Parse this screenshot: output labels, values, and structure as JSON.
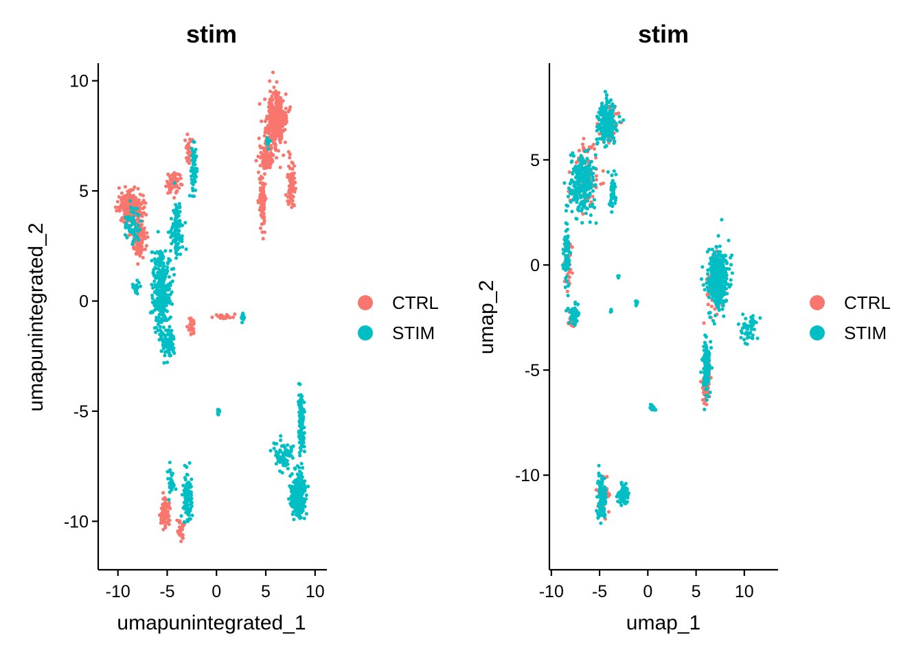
{
  "colors": {
    "CTRL": "#F8766D",
    "STIM": "#00BFC4"
  },
  "chart_data": [
    {
      "type": "scatter",
      "title": "stim",
      "xlabel": "umapunintegrated_1",
      "ylabel": "umapunintegrated_2",
      "xlim": [
        -12,
        11.2
      ],
      "ylim": [
        -12.2,
        10.8
      ],
      "xticks": [
        -10,
        -5,
        0,
        5,
        10
      ],
      "xtick_labels": [
        "-10",
        "-5",
        "0",
        "5",
        "10"
      ],
      "yticks": [
        -10,
        -5,
        0,
        5,
        10
      ],
      "ytick_labels": [
        "-10",
        "-5",
        "0",
        "5",
        "10"
      ],
      "grid": false,
      "legend": {
        "position": "right",
        "entries": [
          "CTRL",
          "STIM"
        ]
      },
      "series": [
        {
          "name": "CTRL",
          "clusters": [
            {
              "center": [
                6.0,
                8.2
              ],
              "spread": [
                1.0,
                1.2
              ],
              "n": 380
            },
            {
              "center": [
                5.0,
                6.5
              ],
              "spread": [
                0.8,
                0.7
              ],
              "n": 90
            },
            {
              "center": [
                4.7,
                4.6
              ],
              "spread": [
                0.35,
                1.5
              ],
              "n": 70
            },
            {
              "center": [
                7.6,
                5.2
              ],
              "spread": [
                0.5,
                1.2
              ],
              "n": 80
            },
            {
              "center": [
                -8.8,
                4.3
              ],
              "spread": [
                1.1,
                0.7
              ],
              "n": 240
            },
            {
              "center": [
                -7.9,
                3.0
              ],
              "spread": [
                0.7,
                1.1
              ],
              "n": 110
            },
            {
              "center": [
                -4.3,
                5.4
              ],
              "spread": [
                0.8,
                0.5
              ],
              "n": 60
            },
            {
              "center": [
                -2.8,
                7.0
              ],
              "spread": [
                0.4,
                0.6
              ],
              "n": 30
            },
            {
              "center": [
                -2.5,
                -1.2
              ],
              "spread": [
                0.35,
                0.4
              ],
              "n": 25
            },
            {
              "center": [
                1.0,
                -0.7
              ],
              "spread": [
                1.3,
                0.15
              ],
              "n": 18
            },
            {
              "center": [
                -5.2,
                -9.6
              ],
              "spread": [
                0.45,
                0.6
              ],
              "n": 100
            },
            {
              "center": [
                -3.6,
                -10.4
              ],
              "spread": [
                0.5,
                0.5
              ],
              "n": 30
            }
          ]
        },
        {
          "name": "STIM",
          "clusters": [
            {
              "center": [
                -5.6,
                0.5
              ],
              "spread": [
                0.9,
                1.8
              ],
              "n": 300
            },
            {
              "center": [
                -4.9,
                -1.9
              ],
              "spread": [
                0.6,
                0.7
              ],
              "n": 90
            },
            {
              "center": [
                -4.0,
                3.2
              ],
              "spread": [
                0.6,
                1.2
              ],
              "n": 110
            },
            {
              "center": [
                -2.3,
                6.0
              ],
              "spread": [
                0.3,
                1.0
              ],
              "n": 60
            },
            {
              "center": [
                -8.5,
                3.5
              ],
              "spread": [
                0.8,
                1.0
              ],
              "n": 60
            },
            {
              "center": [
                -8.1,
                0.6
              ],
              "spread": [
                0.4,
                0.3
              ],
              "n": 20
            },
            {
              "center": [
                8.3,
                -8.8
              ],
              "spread": [
                0.7,
                0.9
              ],
              "n": 320
            },
            {
              "center": [
                8.6,
                -5.6
              ],
              "spread": [
                0.3,
                1.4
              ],
              "n": 110
            },
            {
              "center": [
                6.7,
                -7.0
              ],
              "spread": [
                1.0,
                0.7
              ],
              "n": 70
            },
            {
              "center": [
                -2.9,
                -8.9
              ],
              "spread": [
                0.5,
                1.2
              ],
              "n": 100
            },
            {
              "center": [
                -4.6,
                -8.2
              ],
              "spread": [
                0.4,
                0.8
              ],
              "n": 30
            },
            {
              "center": [
                0.2,
                -5.0
              ],
              "spread": [
                0.1,
                0.2
              ],
              "n": 10
            },
            {
              "center": [
                2.7,
                -0.7
              ],
              "spread": [
                0.2,
                0.2
              ],
              "n": 12
            },
            {
              "center": [
                5.3,
                7.2
              ],
              "spread": [
                0.3,
                0.3
              ],
              "n": 12
            }
          ]
        }
      ]
    },
    {
      "type": "scatter",
      "title": "stim",
      "xlabel": "umap_1",
      "ylabel": "umap_2",
      "xlim": [
        -10.2,
        13.5
      ],
      "ylim": [
        -14.5,
        9.6
      ],
      "xticks": [
        -10,
        -5,
        0,
        5,
        10
      ],
      "xtick_labels": [
        "-10",
        "-5",
        "0",
        "5",
        "10"
      ],
      "yticks": [
        -10,
        -5,
        0,
        5
      ],
      "ytick_labels": [
        "-10",
        "-5",
        "0",
        "5"
      ],
      "grid": false,
      "legend": {
        "position": "right",
        "entries": [
          "CTRL",
          "STIM"
        ]
      },
      "series": [
        {
          "name": "CTRL",
          "clusters": [
            {
              "center": [
                -6.5,
                4.3
              ],
              "spread": [
                1.4,
                1.3
              ],
              "n": 90
            },
            {
              "center": [
                -4.0,
                6.8
              ],
              "spread": [
                1.0,
                0.9
              ],
              "n": 60
            },
            {
              "center": [
                -8.3,
                0.0
              ],
              "spread": [
                0.5,
                1.6
              ],
              "n": 35
            },
            {
              "center": [
                -8.0,
                -2.6
              ],
              "spread": [
                0.5,
                0.4
              ],
              "n": 20
            },
            {
              "center": [
                6.0,
                -5.5
              ],
              "spread": [
                0.4,
                1.0
              ],
              "n": 90
            },
            {
              "center": [
                7.2,
                -0.9
              ],
              "spread": [
                1.2,
                1.4
              ],
              "n": 60
            },
            {
              "center": [
                -4.5,
                -11.0
              ],
              "spread": [
                0.6,
                0.7
              ],
              "n": 30
            }
          ]
        },
        {
          "name": "STIM",
          "clusters": [
            {
              "center": [
                -6.8,
                3.8
              ],
              "spread": [
                1.4,
                1.4
              ],
              "n": 260
            },
            {
              "center": [
                -4.2,
                6.7
              ],
              "spread": [
                1.0,
                0.9
              ],
              "n": 220
            },
            {
              "center": [
                -3.6,
                3.5
              ],
              "spread": [
                0.4,
                1.0
              ],
              "n": 50
            },
            {
              "center": [
                -8.4,
                0.4
              ],
              "spread": [
                0.3,
                1.7
              ],
              "n": 70
            },
            {
              "center": [
                -7.7,
                -2.4
              ],
              "spread": [
                0.5,
                0.5
              ],
              "n": 60
            },
            {
              "center": [
                7.3,
                -0.7
              ],
              "spread": [
                1.1,
                1.5
              ],
              "n": 360
            },
            {
              "center": [
                6.1,
                -4.8
              ],
              "spread": [
                0.4,
                1.2
              ],
              "n": 140
            },
            {
              "center": [
                10.5,
                -3.1
              ],
              "spread": [
                1.0,
                0.7
              ],
              "n": 50
            },
            {
              "center": [
                -4.8,
                -11.0
              ],
              "spread": [
                0.4,
                1.1
              ],
              "n": 110
            },
            {
              "center": [
                -2.6,
                -10.9
              ],
              "spread": [
                0.6,
                0.5
              ],
              "n": 70
            },
            {
              "center": [
                0.5,
                -6.8
              ],
              "spread": [
                0.25,
                0.2
              ],
              "n": 18
            },
            {
              "center": [
                -1.2,
                -1.8
              ],
              "spread": [
                0.1,
                0.15
              ],
              "n": 8
            },
            {
              "center": [
                -3.1,
                -0.5
              ],
              "spread": [
                0.1,
                0.1
              ],
              "n": 5
            },
            {
              "center": [
                -3.8,
                -2.2
              ],
              "spread": [
                0.1,
                0.1
              ],
              "n": 5
            }
          ]
        }
      ]
    }
  ]
}
